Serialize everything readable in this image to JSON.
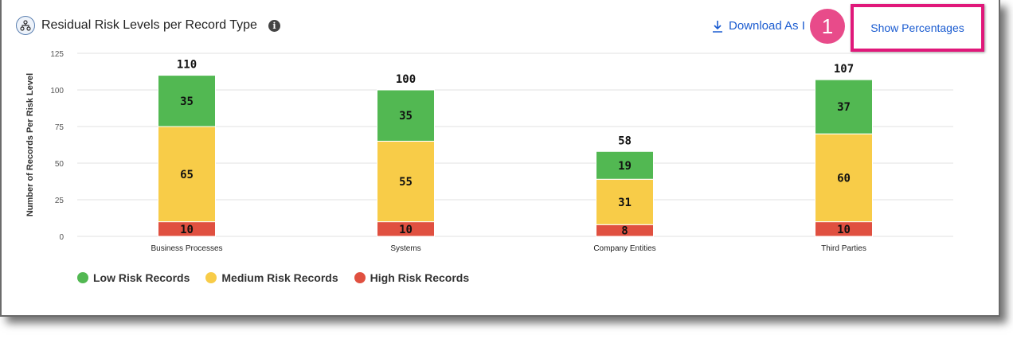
{
  "header": {
    "title": "Residual Risk Levels per Record Type",
    "title_icon": "hierarchy-icon",
    "info_icon": "info-icon",
    "download_label": "Download As I",
    "download_icon": "download-icon",
    "callout_number": "1",
    "show_percentages_label": "Show Percentages"
  },
  "chart_data": {
    "type": "bar",
    "stacked": true,
    "ylabel": "Number of Records Per Risk Level",
    "xlabel": "",
    "ylim": [
      0,
      125
    ],
    "yticks": [
      0,
      25,
      50,
      75,
      100,
      125
    ],
    "grid": true,
    "categories": [
      "Business Processes",
      "Systems",
      "Company Entities",
      "Third Parties"
    ],
    "series": [
      {
        "name": "High Risk Records",
        "color": "#e05040",
        "values": [
          10,
          10,
          8,
          10
        ]
      },
      {
        "name": "Medium Risk Records",
        "color": "#f8cc48",
        "values": [
          65,
          55,
          31,
          60
        ]
      },
      {
        "name": "Low Risk Records",
        "color": "#52b852",
        "values": [
          35,
          35,
          19,
          37
        ]
      }
    ],
    "totals": [
      110,
      100,
      58,
      107
    ],
    "legend": [
      {
        "name": "Low Risk Records",
        "color": "#52b852"
      },
      {
        "name": "Medium Risk Records",
        "color": "#f8cc48"
      },
      {
        "name": "High Risk Records",
        "color": "#e05040"
      }
    ],
    "legend_position": "bottom-left"
  }
}
